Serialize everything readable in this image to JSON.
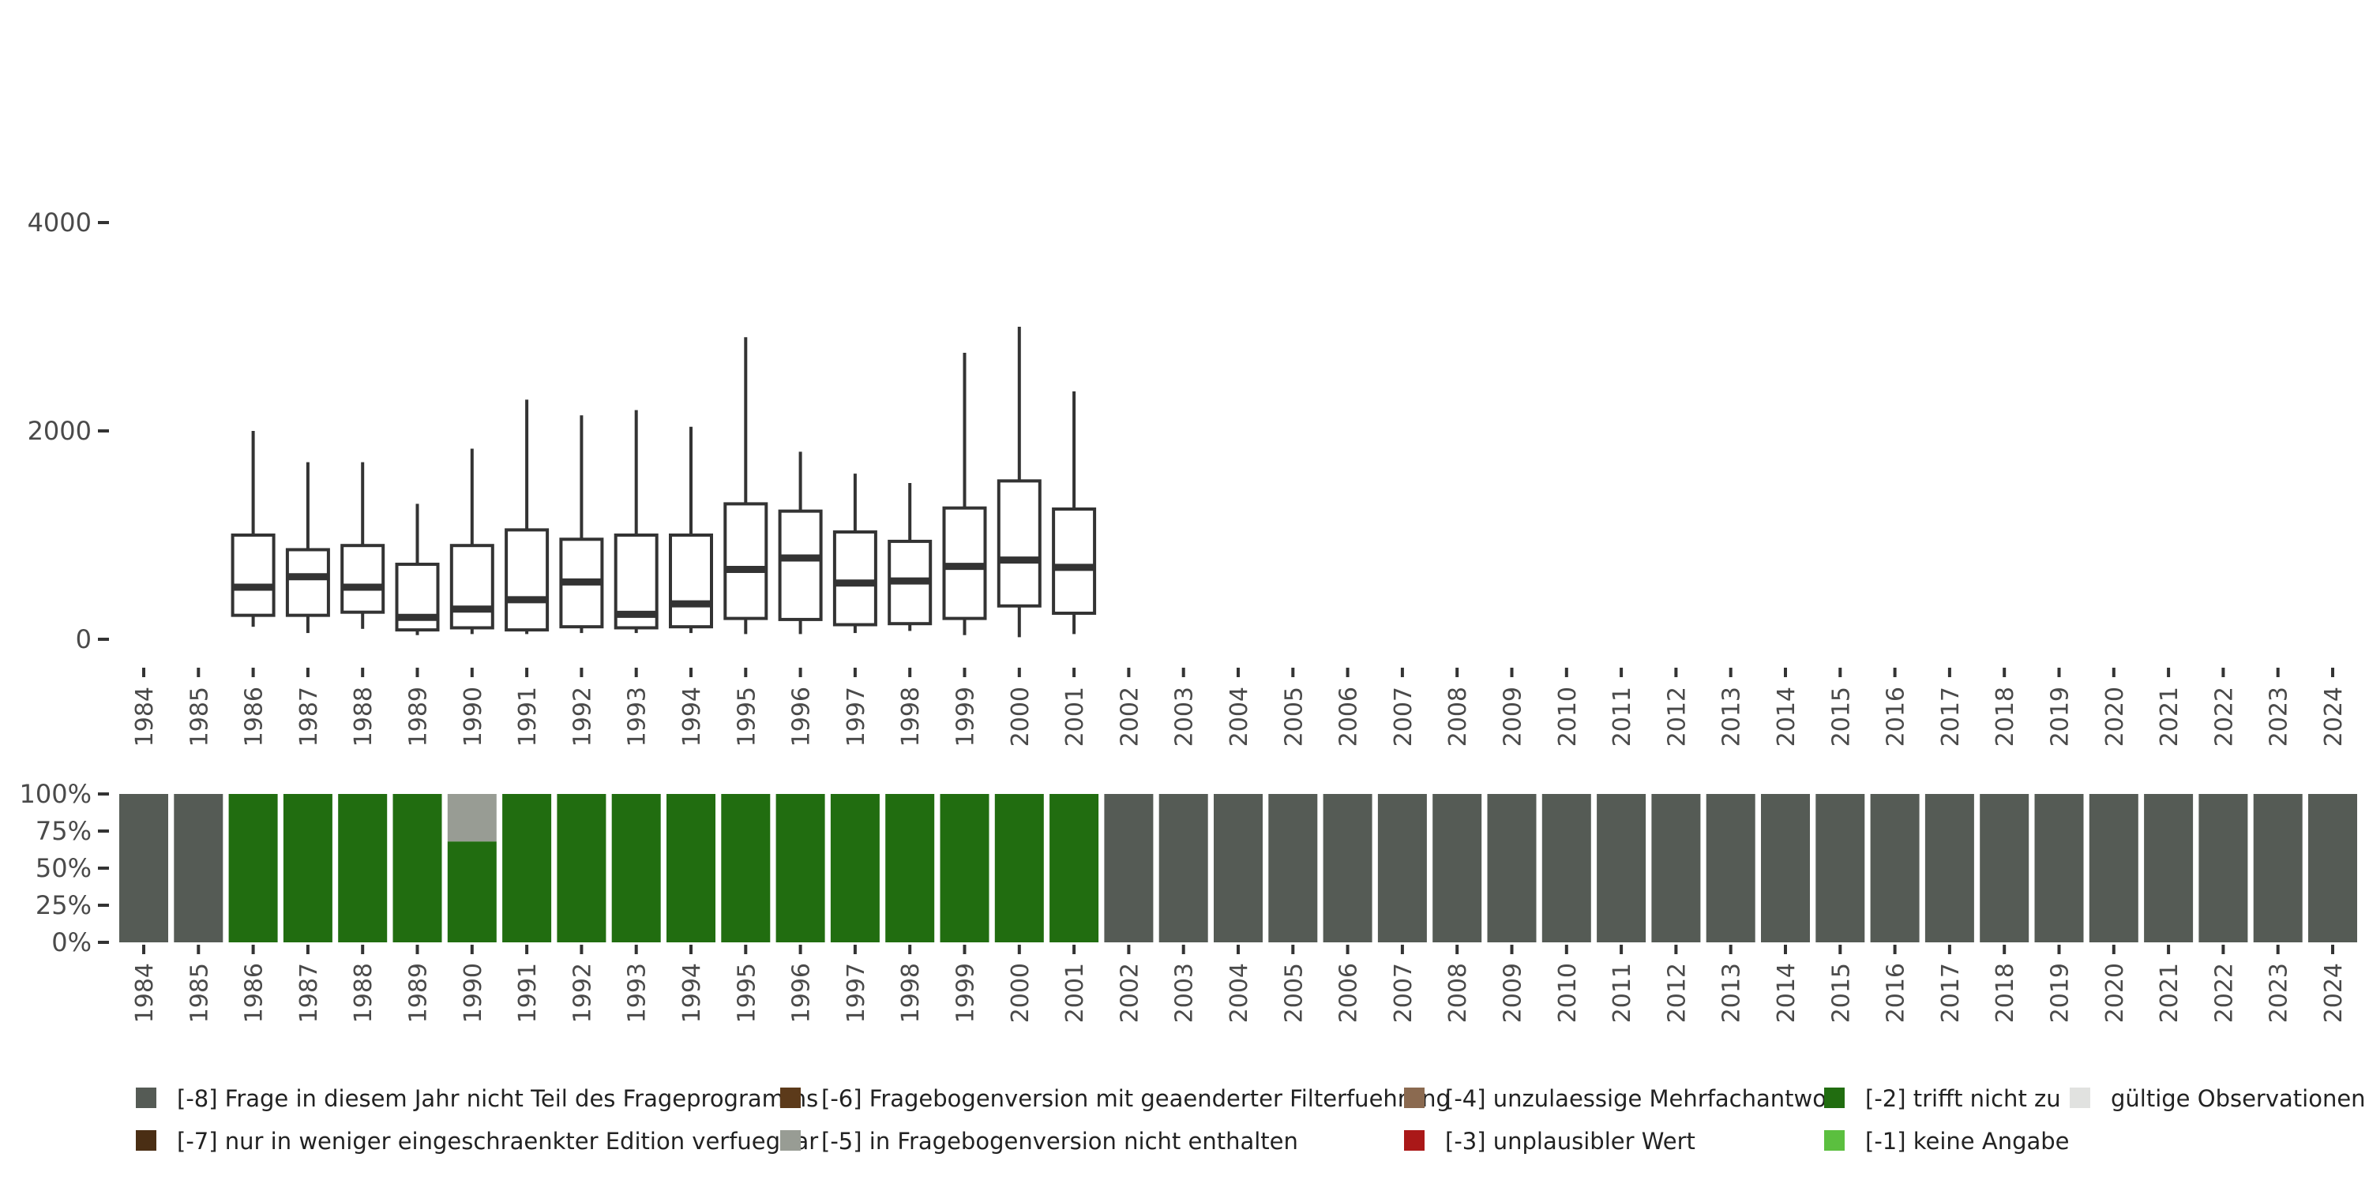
{
  "chart_data": [
    {
      "type": "boxplot",
      "categories": [
        "1984",
        "1985",
        "1986",
        "1987",
        "1988",
        "1989",
        "1990",
        "1991",
        "1992",
        "1993",
        "1994",
        "1995",
        "1996",
        "1997",
        "1998",
        "1999",
        "2000",
        "2001",
        "2002",
        "2003",
        "2004",
        "2005",
        "2006",
        "2007",
        "2008",
        "2009",
        "2010",
        "2011",
        "2012",
        "2013",
        "2014",
        "2015",
        "2016",
        "2017",
        "2018",
        "2019",
        "2020",
        "2021",
        "2022",
        "2023",
        "2024"
      ],
      "ylim": [
        0,
        4000
      ],
      "yticks": [
        "0",
        "2000",
        "4000"
      ],
      "boxes": [
        {
          "year": "1986",
          "whisker_low": 120,
          "q1": 230,
          "median": 500,
          "q3": 1000,
          "whisker_high": 2000
        },
        {
          "year": "1987",
          "whisker_low": 60,
          "q1": 230,
          "median": 600,
          "q3": 860,
          "whisker_high": 1700
        },
        {
          "year": "1988",
          "whisker_low": 100,
          "q1": 260,
          "median": 500,
          "q3": 900,
          "whisker_high": 1700
        },
        {
          "year": "1989",
          "whisker_low": 40,
          "q1": 90,
          "median": 210,
          "q3": 720,
          "whisker_high": 1300
        },
        {
          "year": "1990",
          "whisker_low": 50,
          "q1": 110,
          "median": 290,
          "q3": 900,
          "whisker_high": 1830
        },
        {
          "year": "1991",
          "whisker_low": 50,
          "q1": 90,
          "median": 380,
          "q3": 1050,
          "whisker_high": 2300
        },
        {
          "year": "1992",
          "whisker_low": 60,
          "q1": 120,
          "median": 550,
          "q3": 960,
          "whisker_high": 2150
        },
        {
          "year": "1993",
          "whisker_low": 60,
          "q1": 110,
          "median": 240,
          "q3": 1000,
          "whisker_high": 2200
        },
        {
          "year": "1994",
          "whisker_low": 60,
          "q1": 120,
          "median": 340,
          "q3": 1000,
          "whisker_high": 2040
        },
        {
          "year": "1995",
          "whisker_low": 50,
          "q1": 200,
          "median": 670,
          "q3": 1300,
          "whisker_high": 2900
        },
        {
          "year": "1996",
          "whisker_low": 50,
          "q1": 190,
          "median": 780,
          "q3": 1230,
          "whisker_high": 1800
        },
        {
          "year": "1997",
          "whisker_low": 60,
          "q1": 140,
          "median": 540,
          "q3": 1030,
          "whisker_high": 1590
        },
        {
          "year": "1998",
          "whisker_low": 80,
          "q1": 150,
          "median": 560,
          "q3": 940,
          "whisker_high": 1500
        },
        {
          "year": "1999",
          "whisker_low": 40,
          "q1": 200,
          "median": 700,
          "q3": 1260,
          "whisker_high": 2750
        },
        {
          "year": "2000",
          "whisker_low": 20,
          "q1": 320,
          "median": 760,
          "q3": 1520,
          "whisker_high": 3000
        },
        {
          "year": "2001",
          "whisker_low": 50,
          "q1": 250,
          "median": 690,
          "q3": 1250,
          "whisker_high": 2380
        }
      ]
    },
    {
      "type": "bar",
      "stacked": true,
      "categories": [
        "1984",
        "1985",
        "1986",
        "1987",
        "1988",
        "1989",
        "1990",
        "1991",
        "1992",
        "1993",
        "1994",
        "1995",
        "1996",
        "1997",
        "1998",
        "1999",
        "2000",
        "2001",
        "2002",
        "2003",
        "2004",
        "2005",
        "2006",
        "2007",
        "2008",
        "2009",
        "2010",
        "2011",
        "2012",
        "2013",
        "2014",
        "2015",
        "2016",
        "2017",
        "2018",
        "2019",
        "2020",
        "2021",
        "2022",
        "2023",
        "2024"
      ],
      "ylim": [
        0,
        1
      ],
      "yticks": [
        "0%",
        "25%",
        "50%",
        "75%",
        "100%"
      ],
      "series": [
        {
          "name": "[-2] trifft nicht zu",
          "color": "#216D10",
          "values": [
            0,
            0,
            1,
            1,
            1,
            1,
            0.68,
            1,
            1,
            1,
            1,
            1,
            1,
            1,
            1,
            1,
            1,
            1,
            0,
            0,
            0,
            0,
            0,
            0,
            0,
            0,
            0,
            0,
            0,
            0,
            0,
            0,
            0,
            0,
            0,
            0,
            0,
            0,
            0,
            0,
            0
          ]
        },
        {
          "name": "[-5] in Fragebogenversion nicht enthalten",
          "color": "#989C94",
          "values": [
            0,
            0,
            0,
            0,
            0,
            0,
            0.32,
            0,
            0,
            0,
            0,
            0,
            0,
            0,
            0,
            0,
            0,
            0,
            0,
            0,
            0,
            0,
            0,
            0,
            0,
            0,
            0,
            0,
            0,
            0,
            0,
            0,
            0,
            0,
            0,
            0,
            0,
            0,
            0,
            0,
            0
          ]
        },
        {
          "name": "[-8] Frage in diesem Jahr nicht Teil des Frageprogramms",
          "color": "#555B55",
          "values": [
            1,
            1,
            0,
            0,
            0,
            0,
            0,
            0,
            0,
            0,
            0,
            0,
            0,
            0,
            0,
            0,
            0,
            0,
            1,
            1,
            1,
            1,
            1,
            1,
            1,
            1,
            1,
            1,
            1,
            1,
            1,
            1,
            1,
            1,
            1,
            1,
            1,
            1,
            1,
            1,
            1
          ]
        }
      ]
    }
  ],
  "legend": {
    "placement": "bottom",
    "items": [
      {
        "label": "[-8] Frage in diesem Jahr nicht Teil des Frageprogramms",
        "color": "#555B55"
      },
      {
        "label": "[-7] nur in weniger eingeschraenkter Edition verfuegbar",
        "color": "#4A2E14"
      },
      {
        "label": "[-6] Fragebogenversion mit geaenderter Filterfuehrung",
        "color": "#5C3A1A"
      },
      {
        "label": "[-5] in Fragebogenversion nicht enthalten",
        "color": "#989C94"
      },
      {
        "label": "[-4] unzulaessige Mehrfachantwort",
        "color": "#8B6A50"
      },
      {
        "label": "[-3] unplausibler Wert",
        "color": "#AA1818"
      },
      {
        "label": "[-2] trifft nicht zu",
        "color": "#216D10"
      },
      {
        "label": "[-1] keine Angabe",
        "color": "#5BBF3F"
      },
      {
        "label": "gültige Observationen",
        "color": "#E1E2E0"
      }
    ]
  }
}
